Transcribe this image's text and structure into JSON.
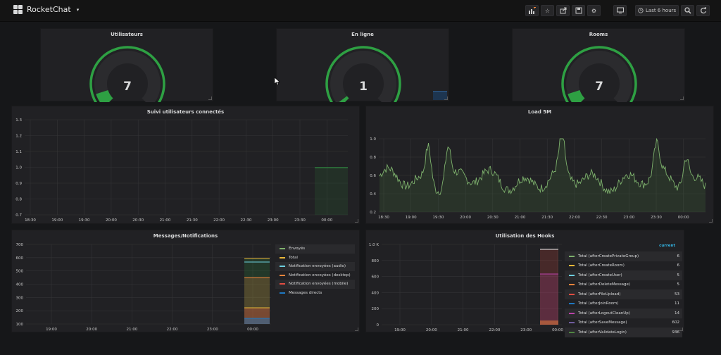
{
  "nav": {
    "title": "RocketChat",
    "time_range": "Last 6 hours"
  },
  "colors": {
    "green": "#2ea043",
    "yellow": "#eab839",
    "cyan": "#6ed0e0",
    "orange": "#ef843c",
    "red": "#e24d42",
    "blue": "#1f78c1",
    "purple": "#ba43a9",
    "violet": "#705da0",
    "teal": "#508642"
  },
  "stats": [
    {
      "title": "Utilisateurs",
      "value": "7",
      "fill": 0.1
    },
    {
      "title": "En ligne",
      "value": "1",
      "fill": 0.03
    },
    {
      "title": "Rooms",
      "value": "7",
      "fill": 0.1
    }
  ],
  "charts": {
    "connected": {
      "title": "Suivi utilisateurs connectés",
      "y_ticks": [
        "1.3",
        "1.2",
        "1.1",
        "1.0",
        "0.9",
        "0.8",
        "0.7"
      ],
      "x_ticks": [
        "18:30",
        "19:00",
        "19:30",
        "20:00",
        "20:30",
        "21:00",
        "21:30",
        "22:00",
        "22:30",
        "23:00",
        "23:30",
        "00:00"
      ]
    },
    "load": {
      "title": "Load 5M",
      "y_ticks": [
        "1.0",
        "0.8",
        "0.6",
        "0.4",
        "0.2"
      ],
      "x_ticks": [
        "18:30",
        "19:00",
        "19:30",
        "20:00",
        "20:30",
        "21:00",
        "21:30",
        "22:00",
        "22:30",
        "23:00",
        "23:30",
        "00:00"
      ]
    },
    "messages": {
      "title": "Messages/Notifications",
      "y_ticks": [
        "700",
        "600",
        "500",
        "400",
        "300",
        "200",
        "100"
      ],
      "x_ticks": [
        "19:00",
        "20:00",
        "21:00",
        "22:00",
        "23:00",
        "00:00"
      ],
      "legend": [
        "Envoyés",
        "Total",
        "Notification envoyées (audio)",
        "Notification envoyées (desktop)",
        "Notification envoyées (mobile)",
        "Messages directs"
      ]
    },
    "hooks": {
      "title": "Utilisation des Hooks",
      "y_ticks": [
        "1.0 K",
        "800",
        "600",
        "400",
        "200",
        "0"
      ],
      "x_ticks": [
        "19:00",
        "20:00",
        "21:00",
        "22:00",
        "23:00",
        "00:00"
      ],
      "legend_header": "current",
      "legend": [
        {
          "label": "Total (afterCreatePrivateGroup)",
          "value": "6"
        },
        {
          "label": "Total (afterCreateRoom)",
          "value": "6"
        },
        {
          "label": "Total (afterCreateUser)",
          "value": "5"
        },
        {
          "label": "Total (afterDeleteMessage)",
          "value": "5"
        },
        {
          "label": "Total (afterFileUpload)",
          "value": "53"
        },
        {
          "label": "Total (afterJoinRoom)",
          "value": "11"
        },
        {
          "label": "Total (afterLogoutCleanUp)",
          "value": "14"
        },
        {
          "label": "Total (afterSaveMessage)",
          "value": "602"
        },
        {
          "label": "Total (afterValidateLogin)",
          "value": "936"
        }
      ]
    }
  }
}
